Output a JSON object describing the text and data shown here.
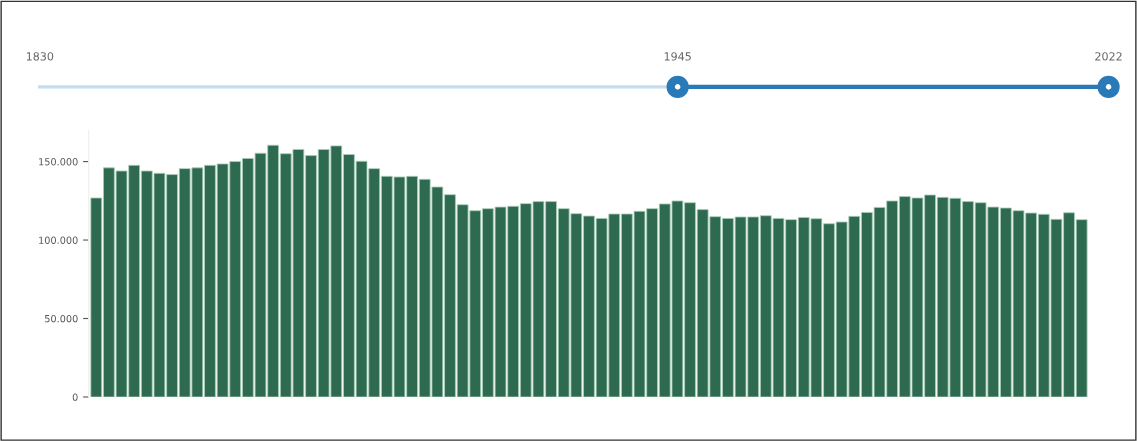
{
  "chart_data": {
    "type": "bar",
    "categories": [
      null,
      null,
      null,
      null,
      null,
      null,
      null,
      null,
      null,
      null,
      null,
      null,
      null,
      null,
      null,
      null,
      null,
      null,
      null,
      null,
      null,
      null,
      null,
      null,
      null,
      null,
      null,
      null,
      null,
      null,
      null,
      null,
      null,
      null,
      null,
      null,
      null,
      null,
      null,
      null,
      null,
      null,
      null,
      null,
      null,
      null,
      null,
      null,
      null,
      null,
      null,
      null,
      null,
      null,
      null,
      null,
      null,
      null,
      null,
      null,
      null,
      null,
      null,
      null,
      null,
      null,
      null,
      null,
      null,
      null,
      null,
      null,
      null,
      null,
      null,
      null,
      null,
      null,
      null
    ],
    "values": [
      126800,
      146000,
      144000,
      147600,
      144000,
      142500,
      141700,
      145500,
      146000,
      147600,
      148500,
      150000,
      152000,
      155300,
      160400,
      155000,
      157700,
      153800,
      157700,
      160000,
      154500,
      150200,
      145500,
      140600,
      140200,
      140600,
      138700,
      133800,
      128900,
      122500,
      118700,
      120000,
      121000,
      121500,
      123200,
      124500,
      124500,
      120000,
      116800,
      115300,
      113800,
      116600,
      116600,
      118300,
      120000,
      123000,
      124900,
      123800,
      119400,
      114900,
      113800,
      114700,
      114700,
      115500,
      113800,
      113000,
      114400,
      113600,
      110400,
      111500,
      115100,
      117600,
      120800,
      124900,
      127700,
      126800,
      128700,
      127200,
      126600,
      124500,
      123800,
      121000,
      120400,
      118700,
      117200,
      116400,
      113200,
      117400,
      113000
    ],
    "color": "#2d6a4f",
    "ylim": [
      0,
      170000
    ],
    "yticks": [
      {
        "value": 0,
        "label": "0"
      },
      {
        "value": 50000,
        "label": "50.000"
      },
      {
        "value": 100000,
        "label": "100.000"
      },
      {
        "value": 150000,
        "label": "150.000"
      }
    ],
    "tick_labels": "y",
    "grid": false,
    "legend": false,
    "annotations": [
      "1830",
      "1945",
      "2022"
    ]
  }
}
